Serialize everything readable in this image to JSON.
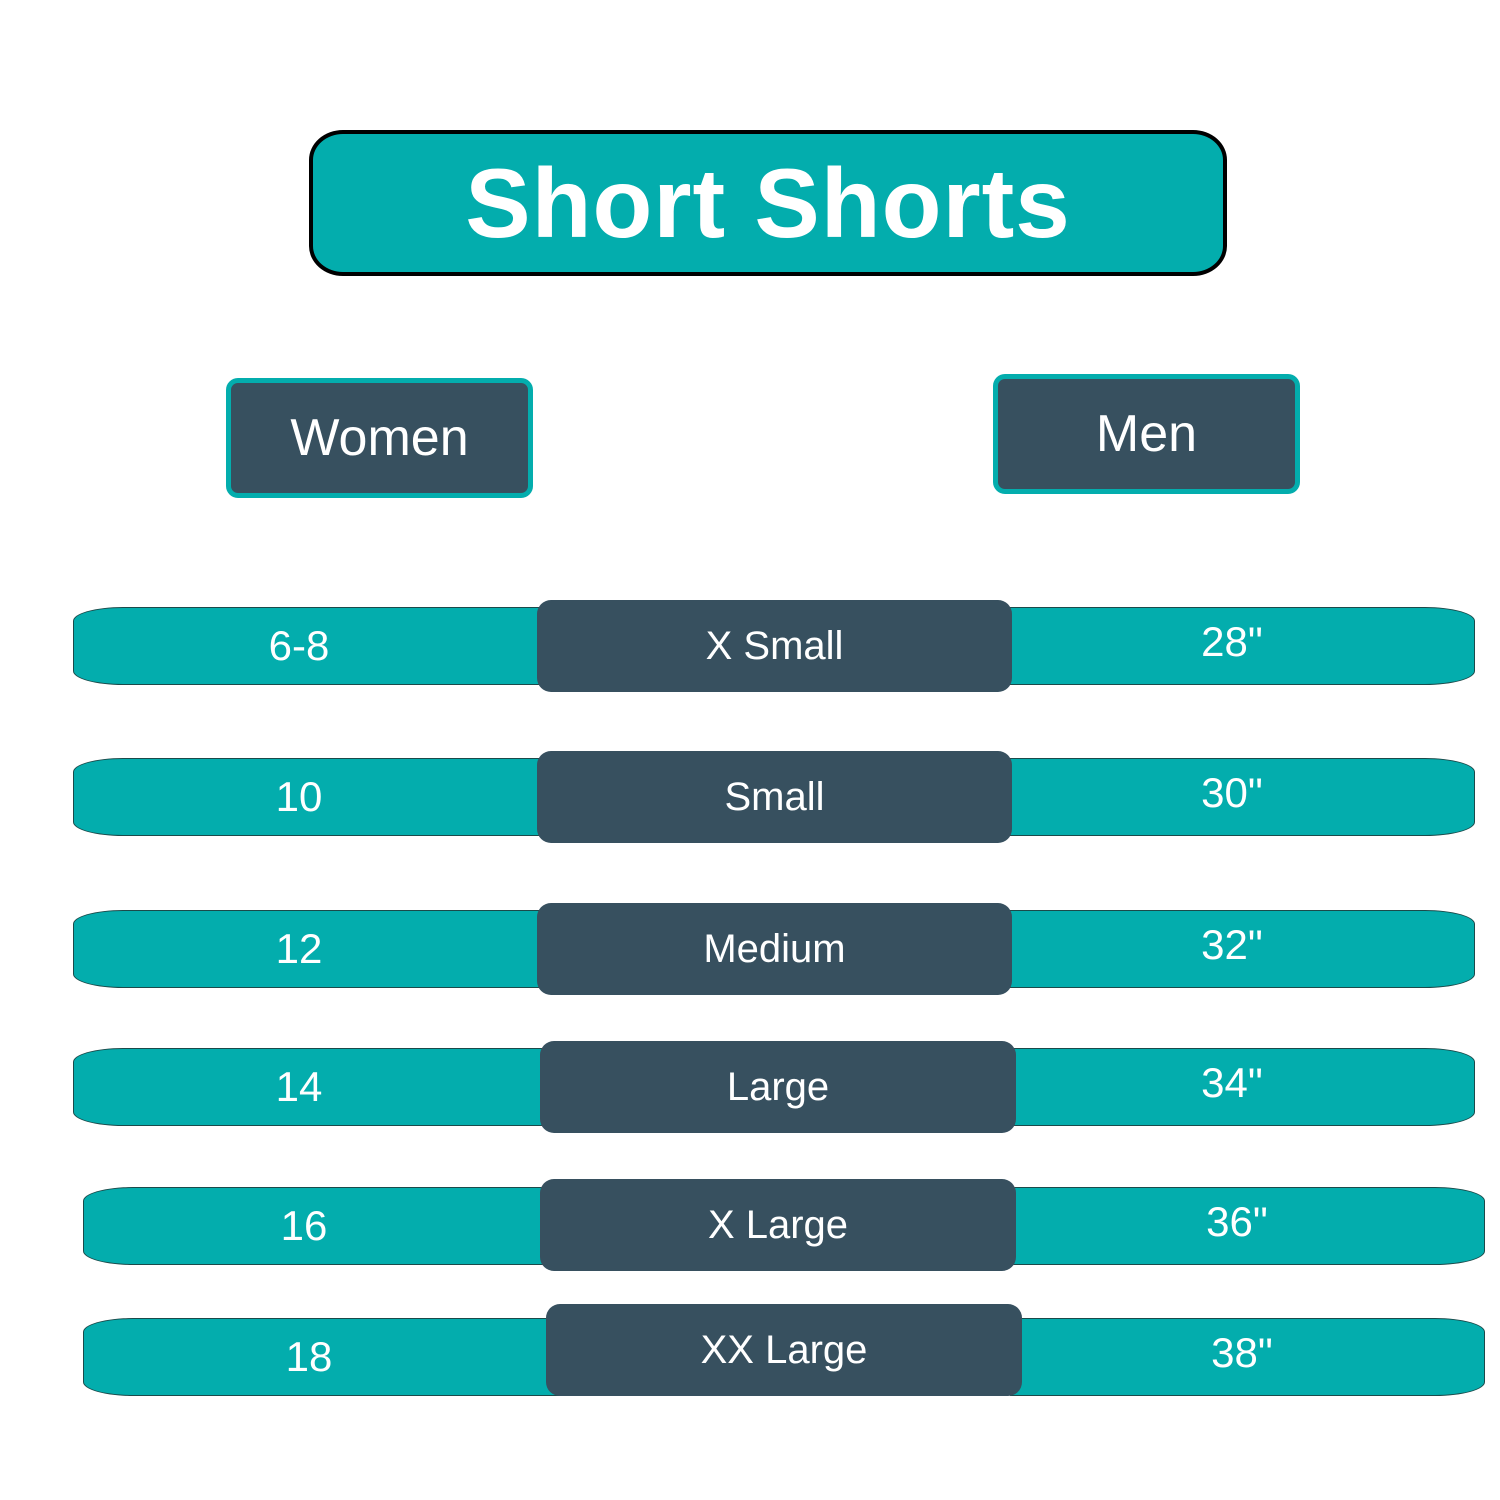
{
  "title": "Short Shorts",
  "headers": {
    "women": "Women",
    "men": "Men"
  },
  "colors": {
    "teal": "#03adad",
    "slate": "#37505f",
    "text": "#ffffff"
  },
  "rows": [
    {
      "women": "6-8",
      "size": "X Small",
      "men": "28\""
    },
    {
      "women": "10",
      "size": "Small",
      "men": "30\""
    },
    {
      "women": "12",
      "size": "Medium",
      "men": "32\""
    },
    {
      "women": "14",
      "size": "Large",
      "men": "34\""
    },
    {
      "women": "16",
      "size": "X Large",
      "men": "36\""
    },
    {
      "women": "18",
      "size": "XX  Large",
      "men": "38\""
    }
  ]
}
